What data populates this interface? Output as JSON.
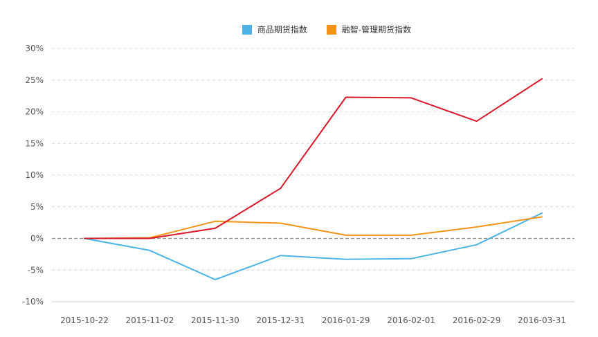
{
  "chart_data": {
    "type": "line",
    "categories": [
      "2015-10-22",
      "2015-11-02",
      "2015-11-30",
      "2015-12-31",
      "2016-01-29",
      "2016-02-01",
      "2016-02-29",
      "2016-03-31"
    ],
    "ylim": [
      -10,
      30
    ],
    "yticks": [
      30,
      25,
      20,
      15,
      10,
      5,
      0,
      -5,
      -10
    ],
    "ytick_labels": [
      "30%",
      "25%",
      "20%",
      "15%",
      "10%",
      "5%",
      "0%",
      "-5%",
      "-10%"
    ],
    "grid": true,
    "legend_position": "top-center",
    "series": [
      {
        "name": "商品期货指数",
        "color": "#4db3e6",
        "values": [
          0,
          -1.9,
          -6.5,
          -2.7,
          -3.3,
          -3.2,
          -1.0,
          4.0
        ],
        "in_legend": true
      },
      {
        "name": "融智-管理期货指数",
        "color": "#f39418",
        "values": [
          0,
          0.1,
          2.7,
          2.4,
          0.5,
          0.5,
          1.8,
          3.4
        ],
        "in_legend": true
      },
      {
        "name": "",
        "color": "#d7182a",
        "values": [
          0,
          0,
          1.6,
          7.9,
          22.3,
          22.2,
          18.5,
          25.2
        ],
        "in_legend": false
      }
    ]
  }
}
